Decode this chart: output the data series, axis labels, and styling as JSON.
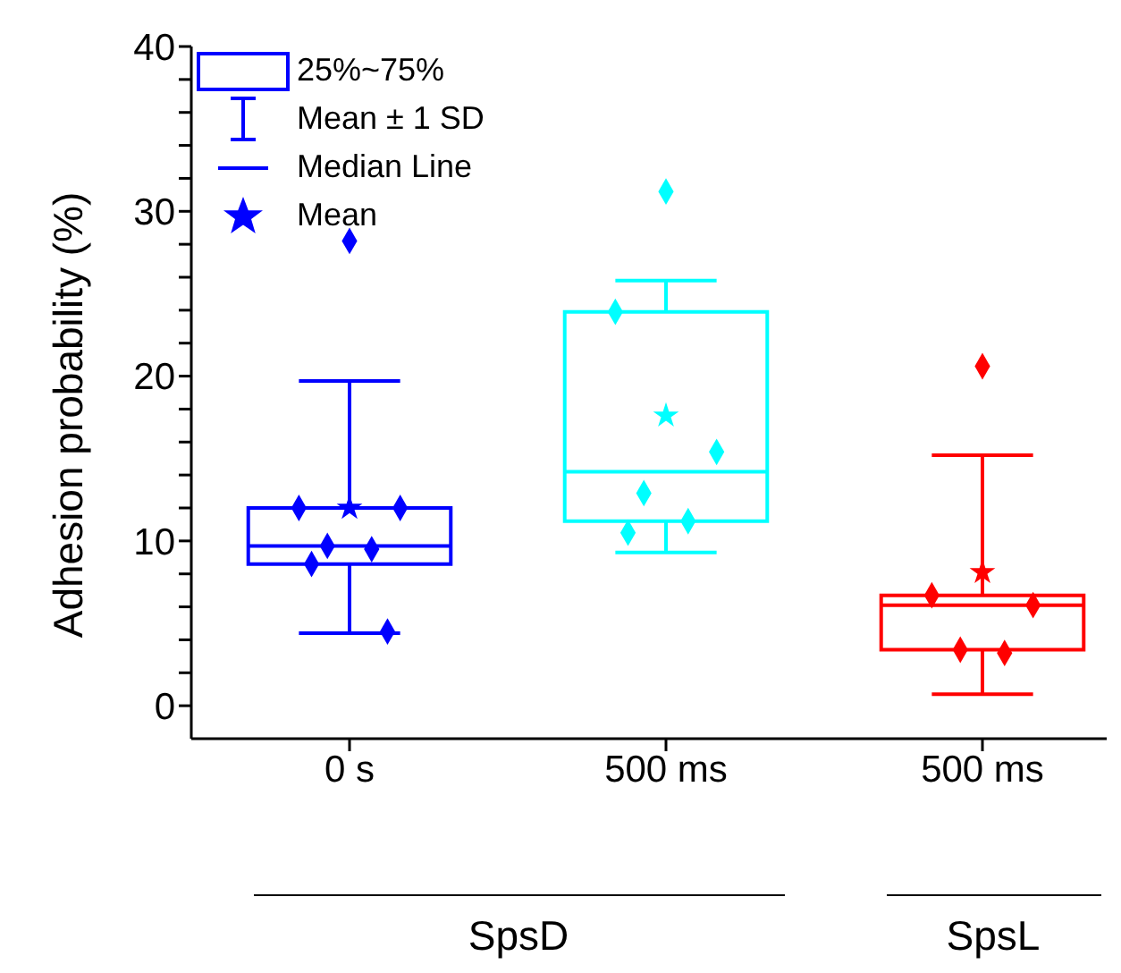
{
  "chart_data": {
    "type": "box",
    "ylabel": "Adhesion probability (%)",
    "categories": [
      "0 s",
      "500 ms",
      "500 ms"
    ],
    "colors": [
      "#0000ff",
      "#00ffff",
      "#ff0000"
    ],
    "boxes": [
      {
        "low": 4.4,
        "q1": 8.6,
        "median": 9.7,
        "q3": 12.0,
        "high": 19.7,
        "mean": 12.0,
        "outliers": [
          28.2,
          12.0,
          12.0,
          9.7,
          9.5,
          8.6,
          4.5
        ]
      },
      {
        "low": 9.3,
        "q1": 11.2,
        "median": 14.2,
        "q3": 23.9,
        "high": 25.8,
        "mean": 17.6,
        "outliers": [
          31.2,
          23.9,
          15.4,
          12.9,
          11.2,
          10.5
        ]
      },
      {
        "low": 0.7,
        "q1": 3.4,
        "median": 6.1,
        "q3": 6.7,
        "high": 15.2,
        "mean": 8.1,
        "outliers": [
          20.6,
          6.7,
          6.1,
          3.4,
          3.2
        ]
      }
    ],
    "marker": "diamond",
    "ylim": [
      -2,
      40
    ],
    "yticks": [
      0,
      {
        "value": 2,
        "label": null
      },
      {
        "value": 4,
        "label": null
      },
      {
        "value": 6,
        "label": null
      },
      {
        "value": 8,
        "label": null
      },
      10,
      {
        "value": 12,
        "label": null
      },
      {
        "value": 14,
        "label": null
      },
      {
        "value": 16,
        "label": null
      },
      {
        "value": 18,
        "label": null
      },
      20,
      {
        "value": 22,
        "label": null
      },
      {
        "value": 24,
        "label": null
      },
      {
        "value": 26,
        "label": null
      },
      {
        "value": 28,
        "label": null
      },
      30,
      {
        "value": 32,
        "label": null
      },
      {
        "value": 34,
        "label": null
      },
      {
        "value": 36,
        "label": null
      },
      {
        "value": 38,
        "label": null
      },
      40
    ],
    "annotations": [
      "25%~75%",
      "Mean ± 1 SD",
      "Median Line",
      "Mean",
      "SpsD",
      "SpsL"
    ]
  }
}
